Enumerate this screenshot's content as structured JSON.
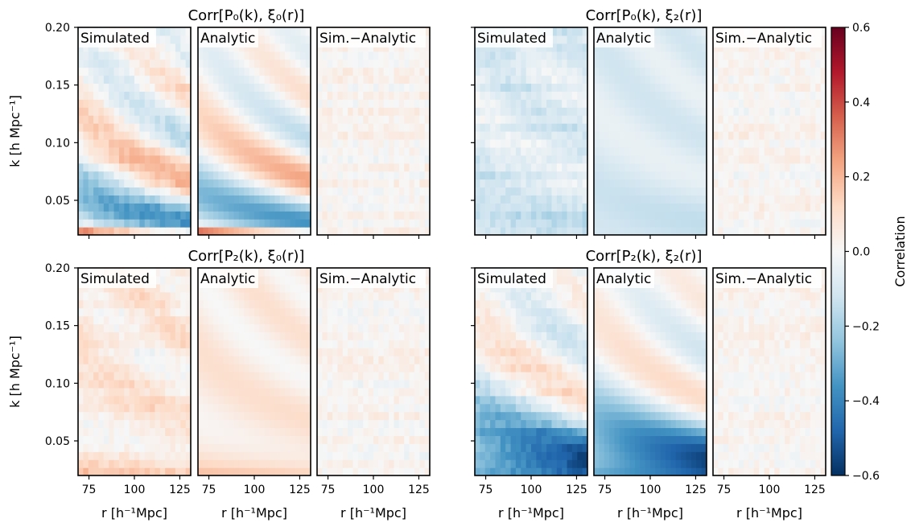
{
  "chart_data": {
    "type": "heatmap",
    "colormap": "RdBu_r",
    "colorbar": {
      "label": "Correlation",
      "range": [
        -0.6,
        0.6
      ],
      "ticks": [
        0.6,
        0.4,
        0.2,
        0.0,
        -0.2,
        -0.4,
        -0.6
      ],
      "tick_labels": [
        "0.6",
        "0.4",
        "0.2",
        "0.0",
        "−0.2",
        "−0.4",
        "−0.6"
      ]
    },
    "axes": {
      "x_range": [
        69,
        131
      ],
      "y_range": [
        0.02,
        0.2
      ],
      "x_ticks": [
        75,
        100,
        125
      ],
      "y_ticks": [
        0.05,
        0.1,
        0.15,
        0.2
      ],
      "y_tick_labels": [
        "0.05",
        "0.10",
        "0.15",
        "0.20"
      ],
      "xlabel_text": "r [h⁻¹Mpc]",
      "ylabel_text": "k [h Mpc⁻¹]"
    },
    "panel_labels": [
      "Simulated",
      "Analytic",
      "Sim.−Analytic"
    ],
    "grid": "off",
    "groups": [
      {
        "title": "Corr[P₀(k), ξ₀(r)]",
        "amplitude": 0.55,
        "pattern": "oscillating, strongly negative band near k≈0.04, strongly positive near k≈0.02 and 0.07"
      },
      {
        "title": "Corr[P₀(k), ξ₂(r)]",
        "amplitude": 0.12,
        "pattern": "weak, mostly slightly negative"
      },
      {
        "title": "Corr[P₂(k), ξ₀(r)]",
        "amplitude": 0.15,
        "pattern": "weak, slightly positive at low k"
      },
      {
        "title": "Corr[P₂(k), ξ₂(r)]",
        "amplitude": 0.62,
        "pattern": "strongly negative below k≈0.05, positive band near k≈0.065"
      }
    ]
  }
}
